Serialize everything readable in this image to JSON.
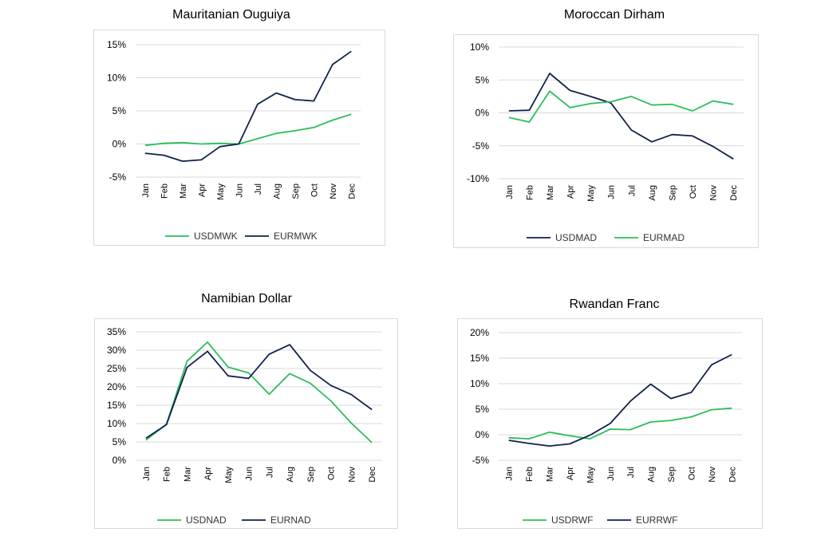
{
  "colors": {
    "green": "#2bbd5a",
    "navy": "#10214d",
    "grid": "#d9d9d9"
  },
  "chart_data": [
    {
      "type": "line",
      "title": "Mauritanian Ouguiya",
      "categories": [
        "Jan",
        "Feb",
        "Mar",
        "Apr",
        "May",
        "Jun",
        "Jul",
        "Aug",
        "Sep",
        "Oct",
        "Nov",
        "Dec"
      ],
      "ylim": [
        -5,
        15
      ],
      "yticks": [
        -5,
        0,
        5,
        10,
        15
      ],
      "ytick_labels": [
        "-5%",
        "0%",
        "5%",
        "10%",
        "15%"
      ],
      "legend_position": "bottom",
      "series": [
        {
          "name": "USDMWK",
          "color": "#2bbd5a",
          "values": [
            -0.2,
            0.1,
            0.2,
            0.0,
            0.1,
            0.0,
            0.8,
            1.6,
            2.0,
            2.5,
            3.6,
            4.5
          ]
        },
        {
          "name": "EURMWK",
          "color": "#10214d",
          "values": [
            -1.4,
            -1.7,
            -2.6,
            -2.4,
            -0.4,
            0.0,
            6.0,
            7.7,
            6.7,
            6.5,
            12.0,
            14.0
          ]
        }
      ]
    },
    {
      "type": "line",
      "title": "Moroccan Dirham",
      "categories": [
        "Jan",
        "Feb",
        "Mar",
        "Apr",
        "May",
        "Jun",
        "Jul",
        "Aug",
        "Sep",
        "Oct",
        "Nov",
        "Dec"
      ],
      "ylim": [
        -10,
        10
      ],
      "yticks": [
        -10,
        -5,
        0,
        5,
        10
      ],
      "ytick_labels": [
        "-10%",
        "-5%",
        "0%",
        "5%",
        "10%"
      ],
      "legend_position": "bottom",
      "series": [
        {
          "name": "USDMAD",
          "color": "#10214d",
          "values": [
            0.3,
            0.4,
            6.0,
            3.4,
            2.5,
            1.5,
            -2.6,
            -4.4,
            -3.3,
            -3.5,
            -5.1,
            -7.0
          ]
        },
        {
          "name": "EURMAD",
          "color": "#2bbd5a",
          "values": [
            -0.7,
            -1.4,
            3.3,
            0.8,
            1.4,
            1.7,
            2.5,
            1.2,
            1.3,
            0.3,
            1.8,
            1.3
          ]
        }
      ]
    },
    {
      "type": "line",
      "title": "Namibian Dollar",
      "categories": [
        "Jan",
        "Feb",
        "Mar",
        "Apr",
        "May",
        "Jun",
        "Jul",
        "Aug",
        "Sep",
        "Oct",
        "Nov",
        "Dec"
      ],
      "ylim": [
        0,
        35
      ],
      "yticks": [
        0,
        5,
        10,
        15,
        20,
        25,
        30,
        35
      ],
      "ytick_labels": [
        "0%",
        "5%",
        "10%",
        "15%",
        "20%",
        "25%",
        "30%",
        "35%"
      ],
      "legend_position": "bottom",
      "series": [
        {
          "name": "USDNAD",
          "color": "#2bbd5a",
          "values": [
            5.5,
            9.8,
            27.0,
            32.2,
            25.4,
            23.8,
            18.0,
            23.6,
            21.0,
            16.2,
            10.1,
            4.8
          ]
        },
        {
          "name": "EURNAD",
          "color": "#10214d",
          "values": [
            6.0,
            9.7,
            25.3,
            29.7,
            23.0,
            22.3,
            28.9,
            31.5,
            24.5,
            20.4,
            17.9,
            13.8
          ]
        }
      ]
    },
    {
      "type": "line",
      "title": "Rwandan Franc",
      "categories": [
        "Jan",
        "Feb",
        "Mar",
        "Apr",
        "May",
        "Jun",
        "Jul",
        "Aug",
        "Sep",
        "Oct",
        "Nov",
        "Dec"
      ],
      "ylim": [
        -5,
        20
      ],
      "yticks": [
        -5,
        0,
        5,
        10,
        15,
        20
      ],
      "ytick_labels": [
        "-5%",
        "0%",
        "5%",
        "10%",
        "15%",
        "20%"
      ],
      "legend_position": "bottom",
      "series": [
        {
          "name": "USDRWF",
          "color": "#2bbd5a",
          "values": [
            -0.6,
            -0.8,
            0.5,
            -0.2,
            -0.8,
            1.1,
            1.0,
            2.5,
            2.8,
            3.5,
            4.9,
            5.2
          ]
        },
        {
          "name": "EURRWF",
          "color": "#10214d",
          "values": [
            -1.1,
            -1.7,
            -2.2,
            -1.8,
            -0.1,
            2.2,
            6.6,
            9.9,
            7.1,
            8.3,
            13.7,
            15.7
          ]
        }
      ]
    }
  ]
}
